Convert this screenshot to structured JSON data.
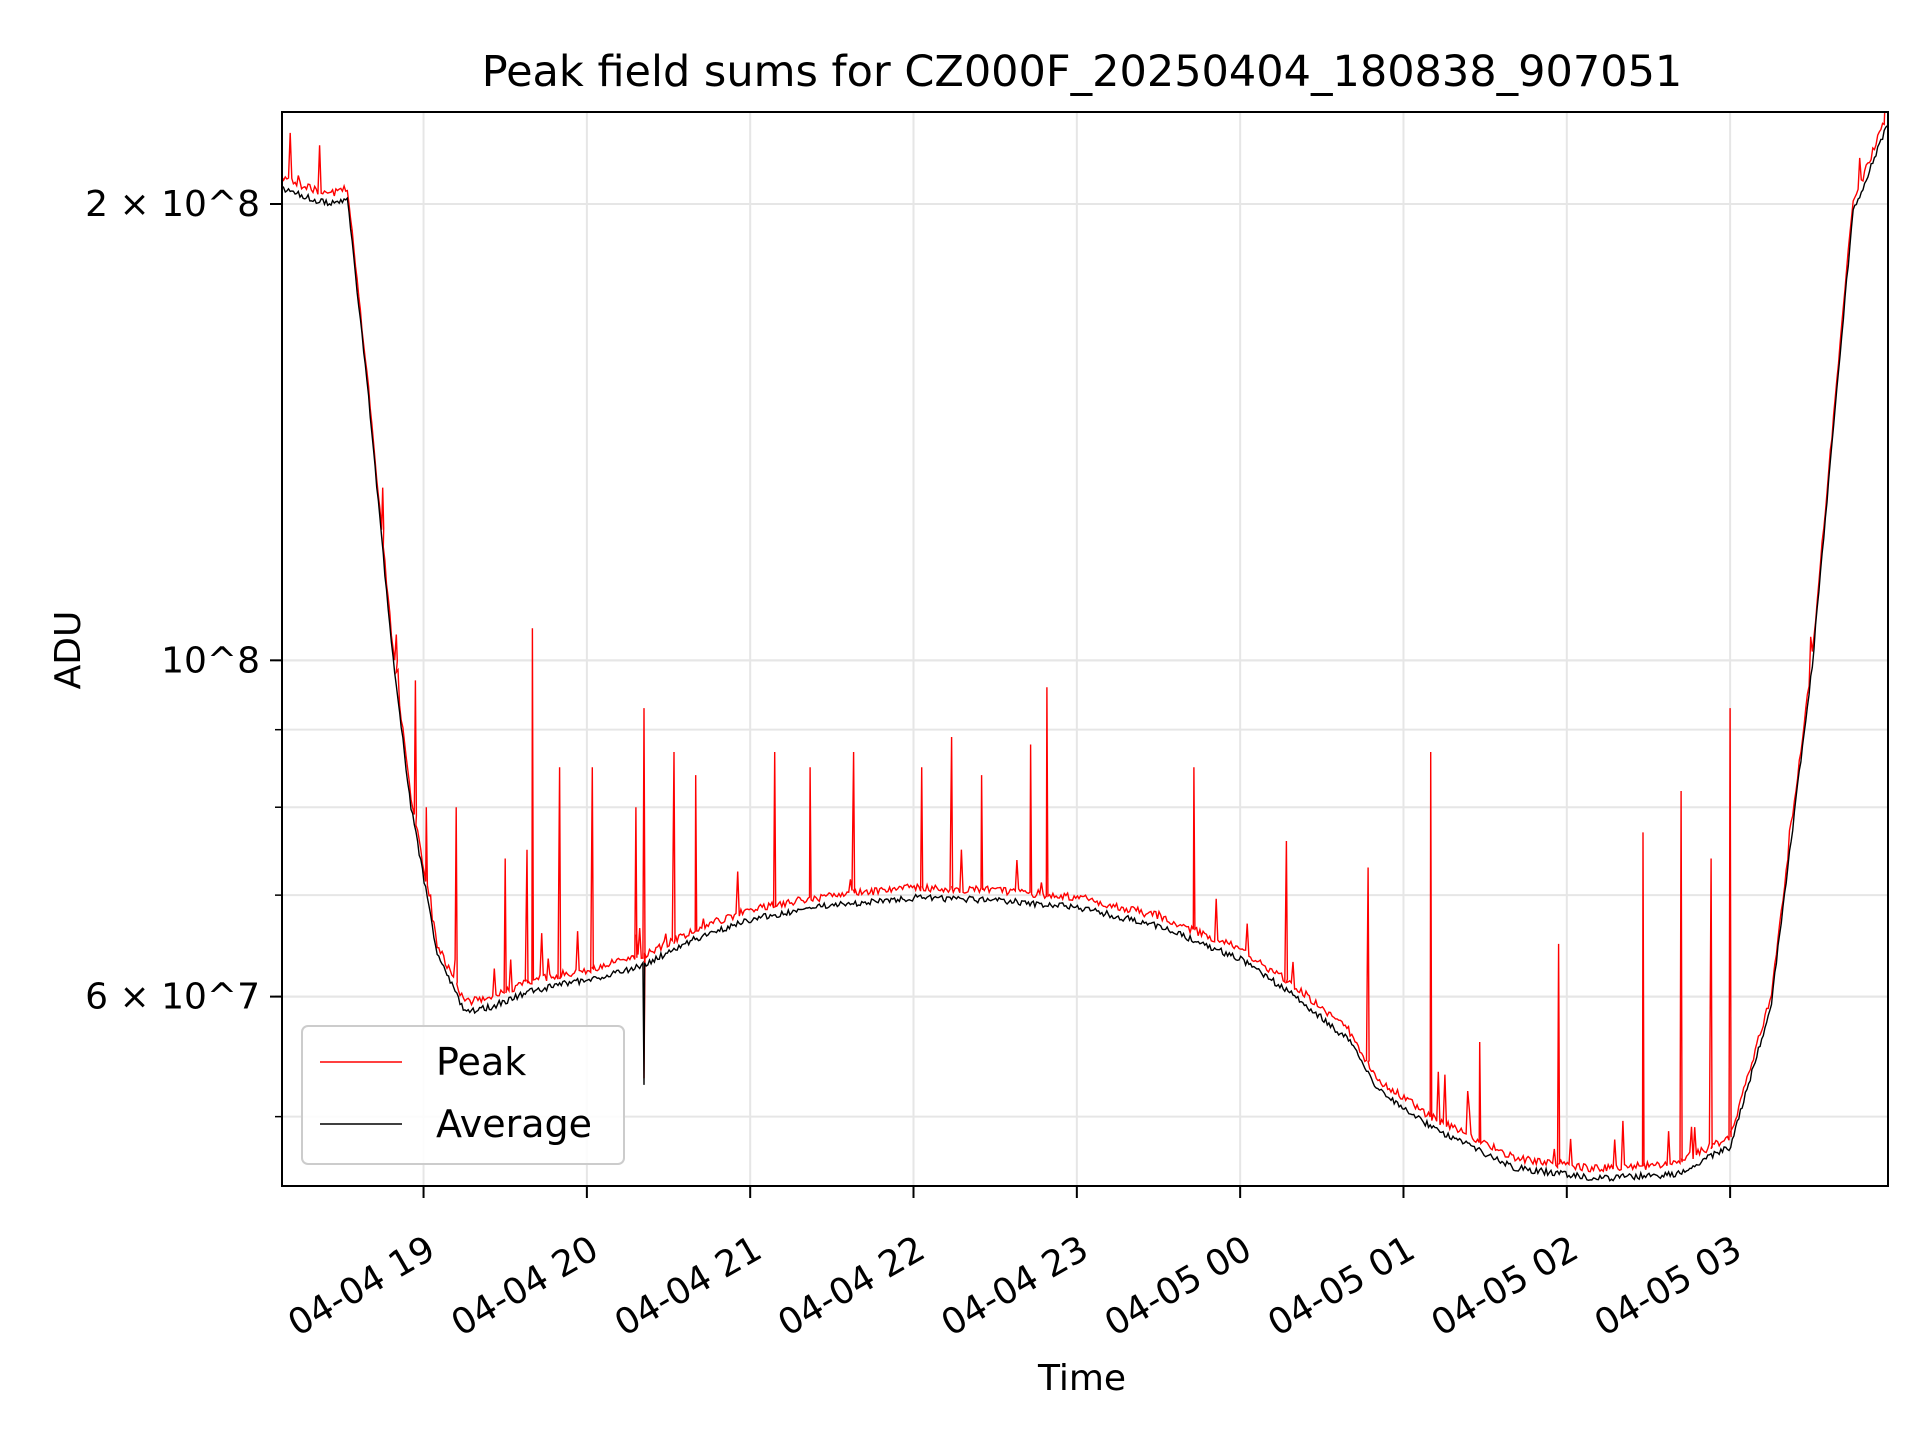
{
  "chart_data": {
    "type": "line",
    "title": "Peak field sums for CZ000F_20250404_180838_907051",
    "xlabel": "Time",
    "ylabel": "ADU",
    "yscale": "log",
    "ylim": [
      45000000,
      230000000
    ],
    "xlim": [
      "2025-04-04 18:08",
      "2025-04-05 03:58"
    ],
    "grid": true,
    "legend_position": "lower left",
    "x_ticks": [
      "04-04 19",
      "04-04 20",
      "04-04 21",
      "04-04 22",
      "04-04 23",
      "04-05 00",
      "04-05 01",
      "04-05 02",
      "04-05 03"
    ],
    "y_ticks": [
      {
        "value": 60000000,
        "label": "6 × 10^7"
      },
      {
        "value": 100000000,
        "label": "10^8"
      },
      {
        "value": 200000000,
        "label": "2 × 10^8"
      }
    ],
    "series": [
      {
        "name": "Peak",
        "color": "#ff0000",
        "baseline": [
          [
            "2025-04-04 18:08",
            208000000
          ],
          [
            "2025-04-04 18:25",
            203000000
          ],
          [
            "2025-04-04 18:32",
            205000000
          ],
          [
            "2025-04-04 18:40",
            150000000
          ],
          [
            "2025-04-04 18:48",
            105000000
          ],
          [
            "2025-04-04 18:55",
            82000000
          ],
          [
            "2025-04-04 19:05",
            65000000
          ],
          [
            "2025-04-04 19:15",
            59500000
          ],
          [
            "2025-04-04 19:25",
            60000000
          ],
          [
            "2025-04-04 19:40",
            61500000
          ],
          [
            "2025-04-04 20:00",
            62500000
          ],
          [
            "2025-04-04 20:20",
            63800000
          ],
          [
            "2025-04-04 20:40",
            66500000
          ],
          [
            "2025-04-04 21:00",
            68500000
          ],
          [
            "2025-04-04 21:30",
            70000000
          ],
          [
            "2025-04-04 22:00",
            70800000
          ],
          [
            "2025-04-04 22:30",
            70500000
          ],
          [
            "2025-04-04 23:00",
            69800000
          ],
          [
            "2025-04-04 23:30",
            67800000
          ],
          [
            "2025-04-05 00:00",
            64500000
          ],
          [
            "2025-04-05 00:20",
            61000000
          ],
          [
            "2025-04-05 00:40",
            57000000
          ],
          [
            "2025-04-05 00:50",
            53000000
          ],
          [
            "2025-04-05 01:10",
            50000000
          ],
          [
            "2025-04-05 01:40",
            47000000
          ],
          [
            "2025-04-05 02:10",
            46200000
          ],
          [
            "2025-04-05 02:40",
            46500000
          ],
          [
            "2025-04-05 03:00",
            48500000
          ],
          [
            "2025-04-05 03:15",
            60000000
          ],
          [
            "2025-04-05 03:30",
            100000000
          ],
          [
            "2025-04-05 03:45",
            200000000
          ],
          [
            "2025-04-05 03:58",
            230000000
          ]
        ],
        "spikes": [
          [
            "2025-04-04 18:45",
            130000000
          ],
          [
            "2025-04-04 18:50",
            104000000
          ],
          [
            "2025-04-04 18:57",
            97000000
          ],
          [
            "2025-04-04 19:01",
            80000000
          ],
          [
            "2025-04-04 19:12",
            80000000
          ],
          [
            "2025-04-04 19:30",
            74000000
          ],
          [
            "2025-04-04 19:38",
            75000000
          ],
          [
            "2025-04-04 19:40",
            105000000
          ],
          [
            "2025-04-04 19:50",
            85000000
          ],
          [
            "2025-04-04 20:02",
            85000000
          ],
          [
            "2025-04-04 20:18",
            80000000
          ],
          [
            "2025-04-04 20:21",
            93000000
          ],
          [
            "2025-04-04 20:32",
            87000000
          ],
          [
            "2025-04-04 20:40",
            84000000
          ],
          [
            "2025-04-04 21:09",
            87000000
          ],
          [
            "2025-04-04 21:22",
            85000000
          ],
          [
            "2025-04-04 21:38",
            87000000
          ],
          [
            "2025-04-04 22:03",
            85000000
          ],
          [
            "2025-04-04 22:14",
            89000000
          ],
          [
            "2025-04-04 22:25",
            84000000
          ],
          [
            "2025-04-04 22:43",
            88000000
          ],
          [
            "2025-04-04 22:49",
            96000000
          ],
          [
            "2025-04-04 23:43",
            85000000
          ],
          [
            "2025-04-05 00:17",
            76000000
          ],
          [
            "2025-04-05 00:47",
            73000000
          ],
          [
            "2025-04-05 01:10",
            87000000
          ],
          [
            "2025-04-05 01:28",
            56000000
          ],
          [
            "2025-04-05 01:57",
            65000000
          ],
          [
            "2025-04-05 02:28",
            77000000
          ],
          [
            "2025-04-05 02:42",
            82000000
          ],
          [
            "2025-04-05 02:53",
            74000000
          ],
          [
            "2025-04-05 03:00",
            93000000
          ]
        ],
        "dips": [
          [
            "2025-04-04 20:21",
            53000000
          ]
        ]
      },
      {
        "name": "Average",
        "color": "#000000",
        "offset_ratio": 0.985
      }
    ]
  }
}
